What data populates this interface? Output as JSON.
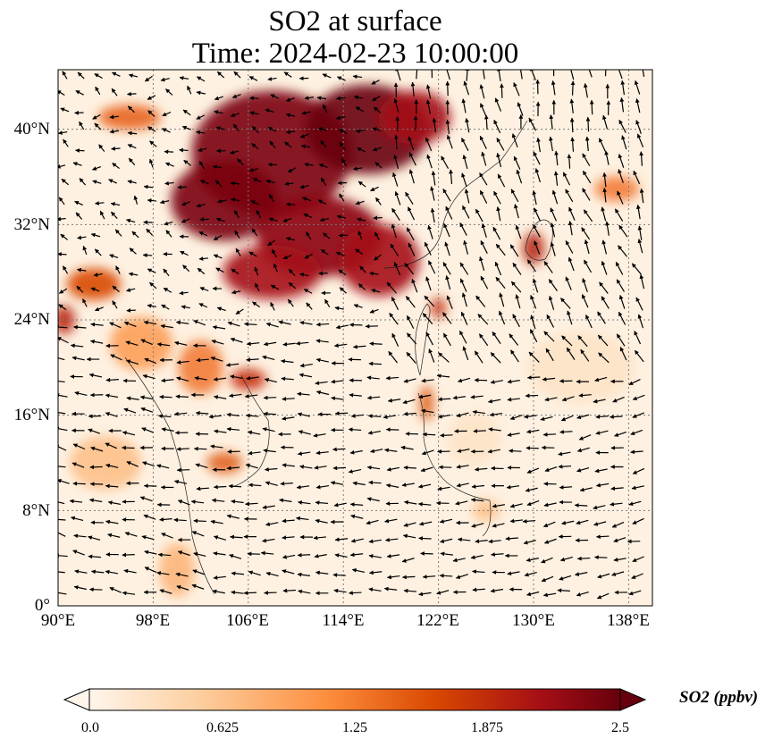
{
  "title": {
    "line1": "SO2 at surface",
    "line2": "Time: 2024-02-23 10:00:00"
  },
  "map": {
    "lon_range": [
      90,
      140
    ],
    "lat_range": [
      0,
      45
    ],
    "lon_ticks": [
      "90°E",
      "98°E",
      "106°E",
      "114°E",
      "122°E",
      "130°E",
      "138°E"
    ],
    "lat_ticks": [
      "0°",
      "8°N",
      "16°N",
      "24°N",
      "32°N",
      "40°N"
    ],
    "gridlines": true,
    "gridline_style": "dotted",
    "field_variable": "SO2",
    "vector_field": "wind arrows"
  },
  "colorbar": {
    "title": "SO2 (ppbv)",
    "ticks": [
      "0.0",
      "0.625",
      "1.25",
      "1.875",
      "2.5"
    ],
    "range": [
      0,
      2.5
    ],
    "colormap": [
      "#fff5eb",
      "#fdd0a2",
      "#fd8d3c",
      "#d94801",
      "#a50f15",
      "#67000d"
    ],
    "extend": "both"
  }
}
